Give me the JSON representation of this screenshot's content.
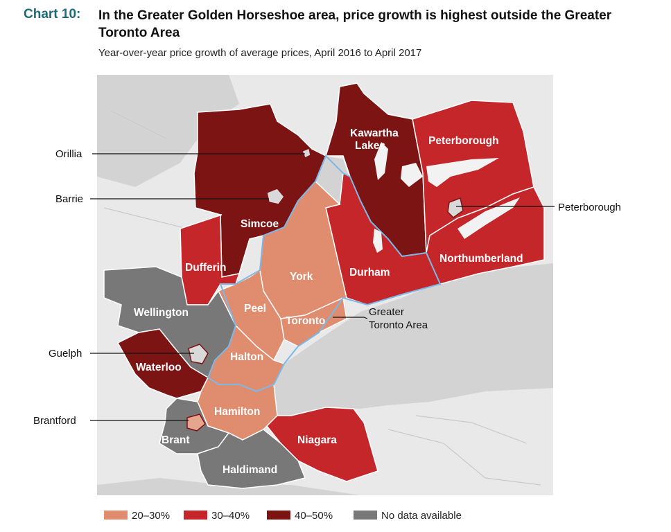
{
  "header": {
    "chart_number": "Chart 10:",
    "title": "In the Greater Golden Horseshoe area, price growth is highest outside the Greater Toronto Area",
    "subtitle": "Year-over-year price growth of average prices, April 2016 to April 2017"
  },
  "legend": [
    {
      "label": "20–30%",
      "color": "#e08c6e"
    },
    {
      "label": "30–40%",
      "color": "#c4262a"
    },
    {
      "label": "40–50%",
      "color": "#7d1414"
    },
    {
      "label": "No data available",
      "color": "#787878"
    }
  ],
  "regions": [
    {
      "name": "Simcoe",
      "category": "40–50%"
    },
    {
      "name": "Kawartha",
      "name2": "Lakes",
      "category": "40–50%"
    },
    {
      "name": "Peterborough",
      "category": "30–40%"
    },
    {
      "name": "Northumberland",
      "category": "30–40%"
    },
    {
      "name": "Durham",
      "category": "30–40%"
    },
    {
      "name": "York",
      "category": "20–30%"
    },
    {
      "name": "Dufferin",
      "category": "30–40%"
    },
    {
      "name": "Peel",
      "category": "20–30%"
    },
    {
      "name": "Toronto",
      "category": "20–30%"
    },
    {
      "name": "Wellington",
      "category": "No data available"
    },
    {
      "name": "Halton",
      "category": "20–30%"
    },
    {
      "name": "Waterloo",
      "category": "40–50%"
    },
    {
      "name": "Hamilton",
      "category": "20–30%"
    },
    {
      "name": "Niagara",
      "category": "30–40%"
    },
    {
      "name": "Brant",
      "category": "No data available"
    },
    {
      "name": "Haldimand",
      "category": "No data available"
    }
  ],
  "callouts": {
    "orillia": "Orillia",
    "barrie": "Barrie",
    "peterborough_city": "Peterborough",
    "guelph": "Guelph",
    "brantford": "Brantford",
    "gta_line1": "Greater",
    "gta_line2": "Toronto Area"
  }
}
